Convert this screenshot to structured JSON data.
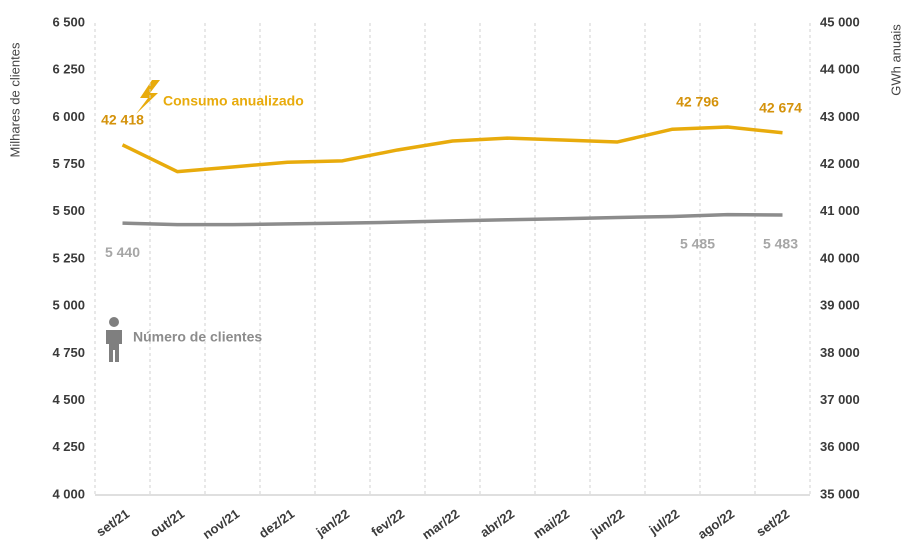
{
  "chart_data": {
    "type": "line",
    "y_label": "Milhares de clientes",
    "y2_label": "GWh anuais",
    "categories": [
      "set/21",
      "out/21",
      "nov/21",
      "dez/21",
      "jan/22",
      "fev/22",
      "mar/22",
      "abr/22",
      "mai/22",
      "jun/22",
      "jul/22",
      "ago/22",
      "set/22"
    ],
    "series": [
      {
        "name": "Consumo anualizado",
        "color": "#e8ab0c",
        "axis": "y2",
        "values": [
          42418,
          41850,
          41950,
          42050,
          42080,
          42310,
          42500,
          42560,
          42520,
          42480,
          42750,
          42796,
          42674
        ],
        "value_labels": [
          "42 418",
          null,
          null,
          null,
          null,
          null,
          null,
          null,
          null,
          null,
          null,
          "42 796",
          "42 674"
        ]
      },
      {
        "name": "Número de clientes",
        "color": "#8c8c8c",
        "values": [
          5440,
          5432,
          5432,
          5436,
          5440,
          5445,
          5452,
          5458,
          5463,
          5470,
          5475,
          5485,
          5483
        ],
        "value_labels": [
          "5 440",
          null,
          null,
          null,
          null,
          null,
          null,
          null,
          null,
          null,
          null,
          "5 485",
          "5 483"
        ]
      }
    ],
    "ylim": [
      4000,
      6500
    ],
    "yticks": [
      {
        "value": 4000,
        "label": "4 000"
      },
      {
        "value": 4250,
        "label": "4 250"
      },
      {
        "value": 4500,
        "label": "4 500"
      },
      {
        "value": 4750,
        "label": "4 750"
      },
      {
        "value": 5000,
        "label": "5 000"
      },
      {
        "value": 5250,
        "label": "5 250"
      },
      {
        "value": 5500,
        "label": "5 500"
      },
      {
        "value": 5750,
        "label": "5 750"
      },
      {
        "value": 6000,
        "label": "6 000"
      },
      {
        "value": 6250,
        "label": "6 250"
      },
      {
        "value": 6500,
        "label": "6 500"
      }
    ],
    "y2lim": [
      35000,
      45000
    ],
    "y2ticks": [
      {
        "value": 35000,
        "label": "35 000"
      },
      {
        "value": 36000,
        "label": "36 000"
      },
      {
        "value": 37000,
        "label": "37 000"
      },
      {
        "value": 38000,
        "label": "38 000"
      },
      {
        "value": 39000,
        "label": "39 000"
      },
      {
        "value": 40000,
        "label": "40 000"
      },
      {
        "value": 41000,
        "label": "41 000"
      },
      {
        "value": 42000,
        "label": "42 000"
      },
      {
        "value": 43000,
        "label": "43 000"
      },
      {
        "value": 44000,
        "label": "44 000"
      },
      {
        "value": 45000,
        "label": "45 000"
      }
    ]
  }
}
